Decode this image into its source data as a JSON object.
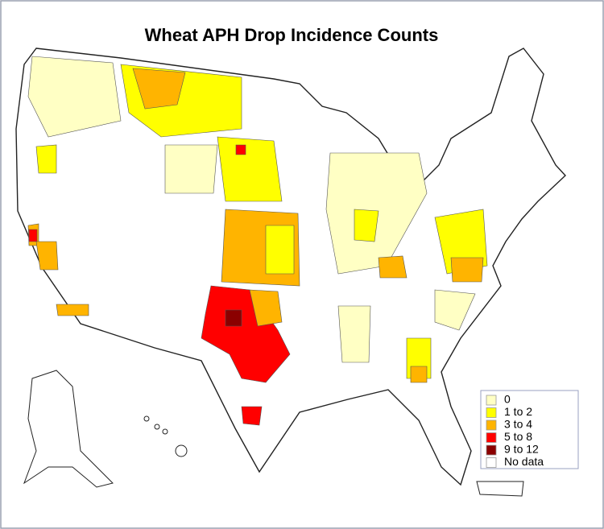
{
  "title": "Wheat APH Drop Incidence Counts",
  "legend": {
    "items": [
      {
        "label": "0",
        "color": "#ffffc4"
      },
      {
        "label": "1 to 2",
        "color": "#ffff00"
      },
      {
        "label": "3 to 4",
        "color": "#ffb400"
      },
      {
        "label": "5 to 8",
        "color": "#ff0000"
      },
      {
        "label": "9 to 12",
        "color": "#8b0000"
      },
      {
        "label": "No data",
        "color": "#ffffff"
      }
    ]
  }
}
